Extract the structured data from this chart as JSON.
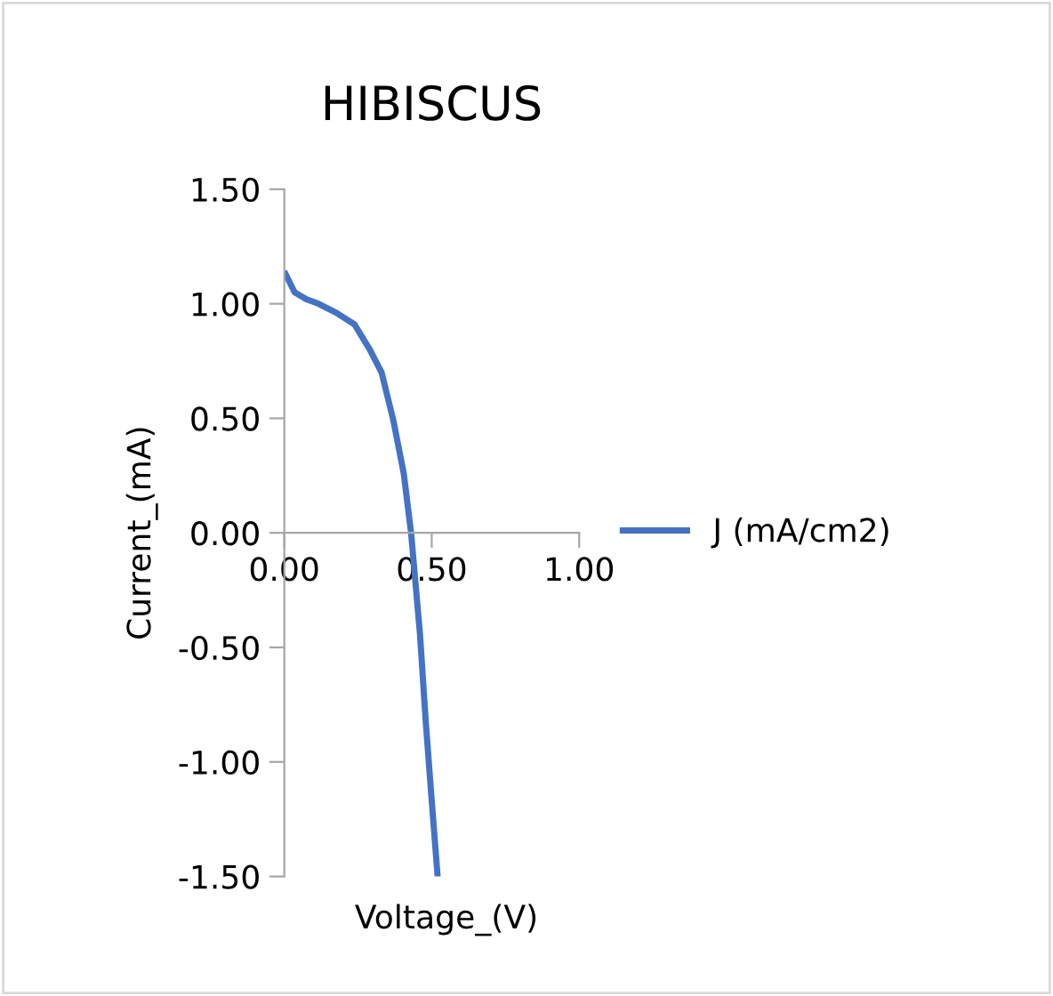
{
  "chart_data": {
    "type": "line",
    "title": "HIBISCUS",
    "xlabel": "Voltage_(V)",
    "ylabel": "Current_(mA)",
    "series": [
      {
        "name": "J (mA/cm2)",
        "color": "#4472c4",
        "x": [
          0.004,
          0.035,
          0.075,
          0.116,
          0.177,
          0.238,
          0.29,
          0.33,
          0.37,
          0.405,
          0.43,
          0.46,
          0.48,
          0.5,
          0.52
        ],
        "values": [
          1.13,
          1.05,
          1.02,
          1.0,
          0.96,
          0.91,
          0.8,
          0.7,
          0.49,
          0.26,
          0.0,
          -0.44,
          -0.83,
          -1.17,
          -1.5
        ]
      }
    ],
    "xlim": [
      0,
      1
    ],
    "xticks": [
      {
        "value": 0,
        "label": "0.00"
      },
      {
        "value": 0.5,
        "label": "0.50"
      },
      {
        "value": 1,
        "label": "1.00"
      }
    ],
    "ylim": [
      -1.5,
      1.5
    ],
    "yticks": [
      {
        "value": -1.5,
        "label": "-1.50"
      },
      {
        "value": -1,
        "label": "-1.00"
      },
      {
        "value": -0.5,
        "label": "-0.50"
      },
      {
        "value": 0,
        "label": "0.00"
      },
      {
        "value": 0.5,
        "label": "0.50"
      },
      {
        "value": 1,
        "label": "1.00"
      },
      {
        "value": 1.5,
        "label": "1.50"
      }
    ],
    "legend": "right",
    "grid": false,
    "marker": "none",
    "line_style": "solid"
  }
}
